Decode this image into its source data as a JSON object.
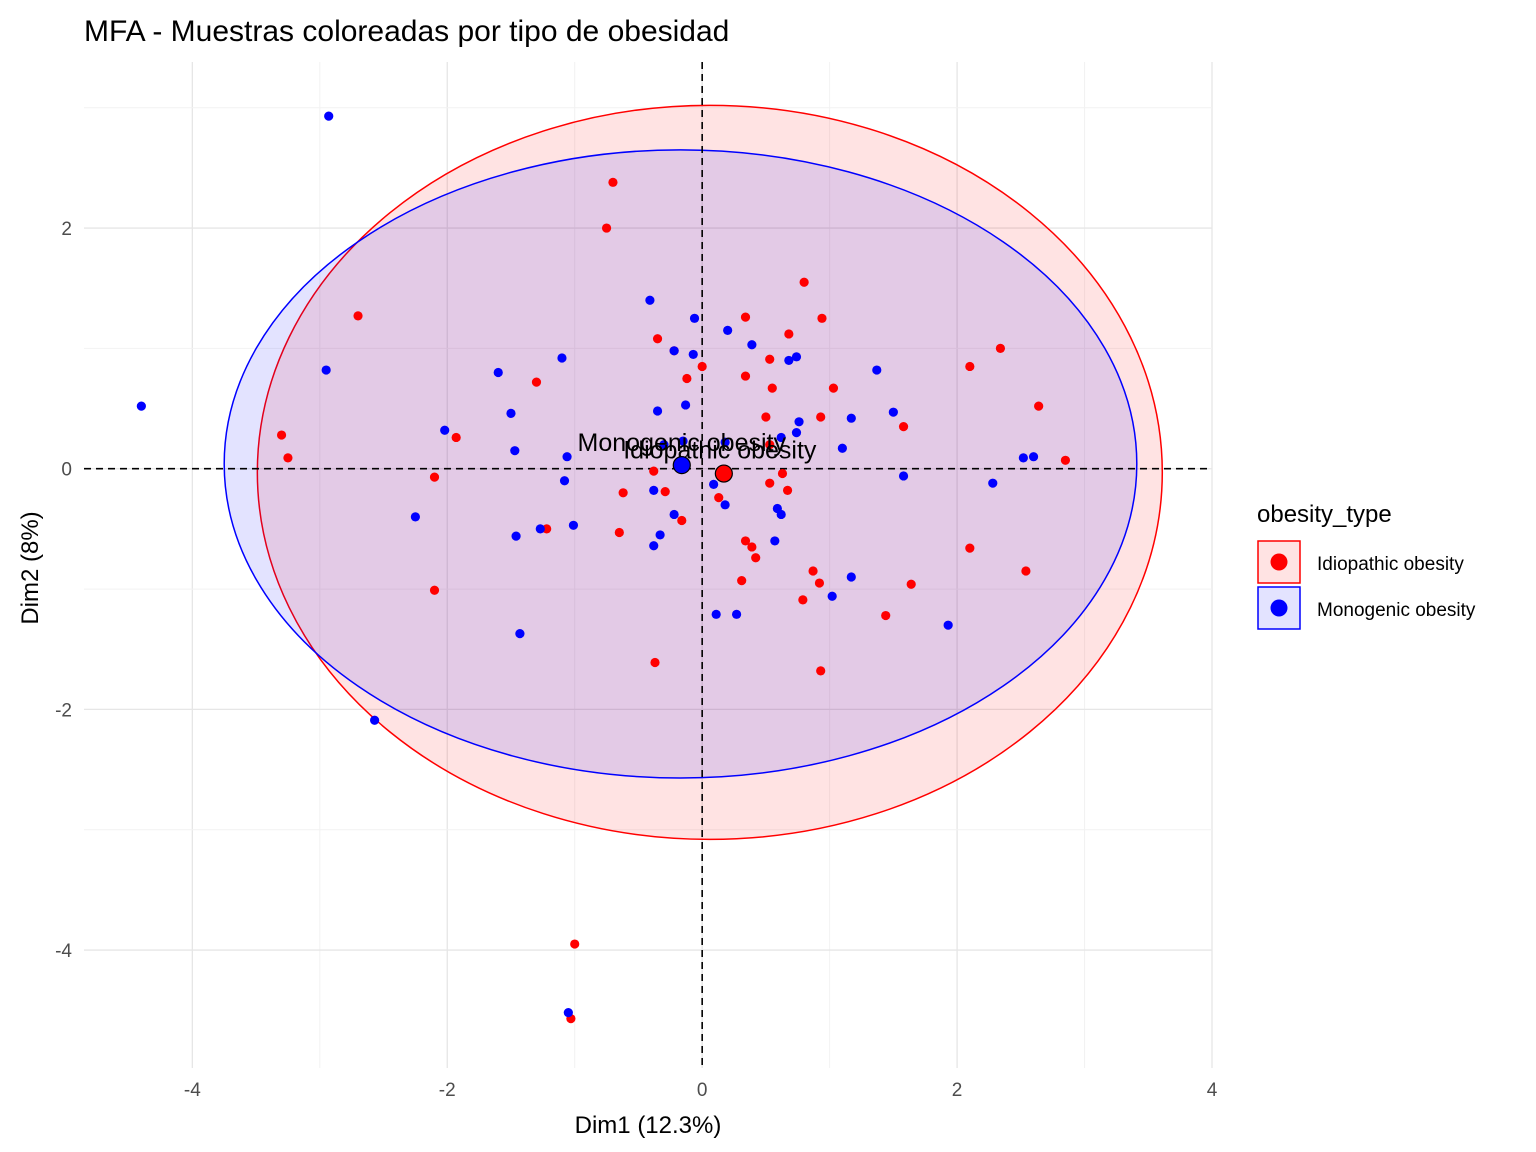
{
  "chart_data": {
    "type": "scatter",
    "title": "MFA - Muestras coloreadas por tipo de obesidad",
    "xlabel": "Dim1 (12.3%)",
    "ylabel": "Dim2 (8%)",
    "xlim": [
      -4.85,
      4.0
    ],
    "ylim": [
      -4.98,
      3.38
    ],
    "x_ticks": [
      -4,
      -2,
      0,
      2,
      4
    ],
    "y_ticks": [
      -4,
      -2,
      0,
      2
    ],
    "x_tick_labels": [
      "-4",
      "-2",
      "0",
      "2",
      "4"
    ],
    "y_tick_labels": [
      "-4",
      "-2",
      "0",
      "2"
    ],
    "grid": true,
    "reference_lines": {
      "x": 0,
      "y": 0,
      "style": "dashed"
    },
    "legend": {
      "title": "obesity_type",
      "position": "right"
    },
    "series": [
      {
        "name": "Idiopathic obesity",
        "color": "#ff0000",
        "fill": "rgba(255,0,0,0.11)",
        "centroid": {
          "x": 0.17,
          "y": -0.04,
          "label": "Idiopathic obesity"
        },
        "ellipse": {
          "cx": 0.06,
          "cy": -0.03,
          "rx": 3.55,
          "ry": 3.05
        },
        "points": [
          [
            -0.7,
            2.38
          ],
          [
            -0.75,
            2.0
          ],
          [
            0.8,
            1.55
          ],
          [
            -2.7,
            1.27
          ],
          [
            0.34,
            1.26
          ],
          [
            0.94,
            1.25
          ],
          [
            0.68,
            1.12
          ],
          [
            -0.35,
            1.08
          ],
          [
            2.34,
            1.0
          ],
          [
            -0.22,
            0.98
          ],
          [
            0.53,
            0.91
          ],
          [
            -0.12,
            0.75
          ],
          [
            0.34,
            0.77
          ],
          [
            0.0,
            0.85
          ],
          [
            2.1,
            0.85
          ],
          [
            -1.3,
            0.72
          ],
          [
            0.55,
            0.67
          ],
          [
            1.03,
            0.67
          ],
          [
            2.64,
            0.52
          ],
          [
            0.5,
            0.43
          ],
          [
            0.93,
            0.43
          ],
          [
            1.58,
            0.35
          ],
          [
            -3.3,
            0.28
          ],
          [
            -1.93,
            0.26
          ],
          [
            0.53,
            0.2
          ],
          [
            -3.25,
            0.09
          ],
          [
            2.85,
            0.07
          ],
          [
            -0.38,
            -0.02
          ],
          [
            0.63,
            -0.04
          ],
          [
            -2.1,
            -0.07
          ],
          [
            0.53,
            -0.12
          ],
          [
            -0.29,
            -0.19
          ],
          [
            -0.62,
            -0.2
          ],
          [
            0.67,
            -0.18
          ],
          [
            0.13,
            -0.24
          ],
          [
            -0.16,
            -0.43
          ],
          [
            -1.22,
            -0.5
          ],
          [
            -0.65,
            -0.53
          ],
          [
            0.34,
            -0.6
          ],
          [
            0.39,
            -0.65
          ],
          [
            0.42,
            -0.74
          ],
          [
            2.1,
            -0.66
          ],
          [
            0.87,
            -0.85
          ],
          [
            0.92,
            -0.95
          ],
          [
            1.64,
            -0.96
          ],
          [
            0.31,
            -0.93
          ],
          [
            2.54,
            -0.85
          ],
          [
            -2.1,
            -1.01
          ],
          [
            0.79,
            -1.09
          ],
          [
            1.44,
            -1.22
          ],
          [
            -0.37,
            -1.61
          ],
          [
            0.93,
            -1.68
          ],
          [
            -1.0,
            -3.95
          ],
          [
            -1.03,
            -4.57
          ]
        ]
      },
      {
        "name": "Monogenic obesity",
        "color": "#0000ff",
        "fill": "rgba(0,0,255,0.11)",
        "centroid": {
          "x": -0.16,
          "y": 0.03,
          "label": "Monogenic obesity"
        },
        "ellipse": {
          "cx": -0.17,
          "cy": 0.04,
          "rx": 3.58,
          "ry": 2.61
        },
        "points": [
          [
            -2.93,
            2.93
          ],
          [
            -0.41,
            1.4
          ],
          [
            -0.06,
            1.25
          ],
          [
            0.2,
            1.15
          ],
          [
            0.39,
            1.03
          ],
          [
            -0.22,
            0.98
          ],
          [
            -0.07,
            0.95
          ],
          [
            0.68,
            0.9
          ],
          [
            0.74,
            0.93
          ],
          [
            -1.1,
            0.92
          ],
          [
            -2.95,
            0.82
          ],
          [
            1.37,
            0.82
          ],
          [
            -1.6,
            0.8
          ],
          [
            -4.4,
            0.52
          ],
          [
            -0.13,
            0.53
          ],
          [
            -0.35,
            0.48
          ],
          [
            -1.5,
            0.46
          ],
          [
            1.5,
            0.47
          ],
          [
            1.17,
            0.42
          ],
          [
            0.76,
            0.39
          ],
          [
            -2.02,
            0.32
          ],
          [
            0.74,
            0.3
          ],
          [
            0.62,
            0.26
          ],
          [
            0.18,
            0.22
          ],
          [
            -0.3,
            0.2
          ],
          [
            -0.15,
            0.23
          ],
          [
            -1.47,
            0.15
          ],
          [
            1.1,
            0.17
          ],
          [
            -1.06,
            0.1
          ],
          [
            2.52,
            0.09
          ],
          [
            2.6,
            0.1
          ],
          [
            -0.16,
            0.03
          ],
          [
            1.58,
            -0.06
          ],
          [
            -1.08,
            -0.1
          ],
          [
            0.09,
            -0.13
          ],
          [
            2.28,
            -0.12
          ],
          [
            -0.38,
            -0.18
          ],
          [
            -0.22,
            -0.38
          ],
          [
            0.18,
            -0.3
          ],
          [
            0.59,
            -0.33
          ],
          [
            0.62,
            -0.38
          ],
          [
            -2.25,
            -0.4
          ],
          [
            -1.01,
            -0.47
          ],
          [
            -1.27,
            -0.5
          ],
          [
            -1.46,
            -0.56
          ],
          [
            -0.33,
            -0.55
          ],
          [
            -0.38,
            -0.64
          ],
          [
            0.57,
            -0.6
          ],
          [
            1.17,
            -0.9
          ],
          [
            1.02,
            -1.06
          ],
          [
            0.11,
            -1.21
          ],
          [
            0.27,
            -1.21
          ],
          [
            1.93,
            -1.3
          ],
          [
            -1.43,
            -1.37
          ],
          [
            -2.57,
            -2.09
          ],
          [
            -1.05,
            -4.52
          ]
        ]
      }
    ]
  }
}
